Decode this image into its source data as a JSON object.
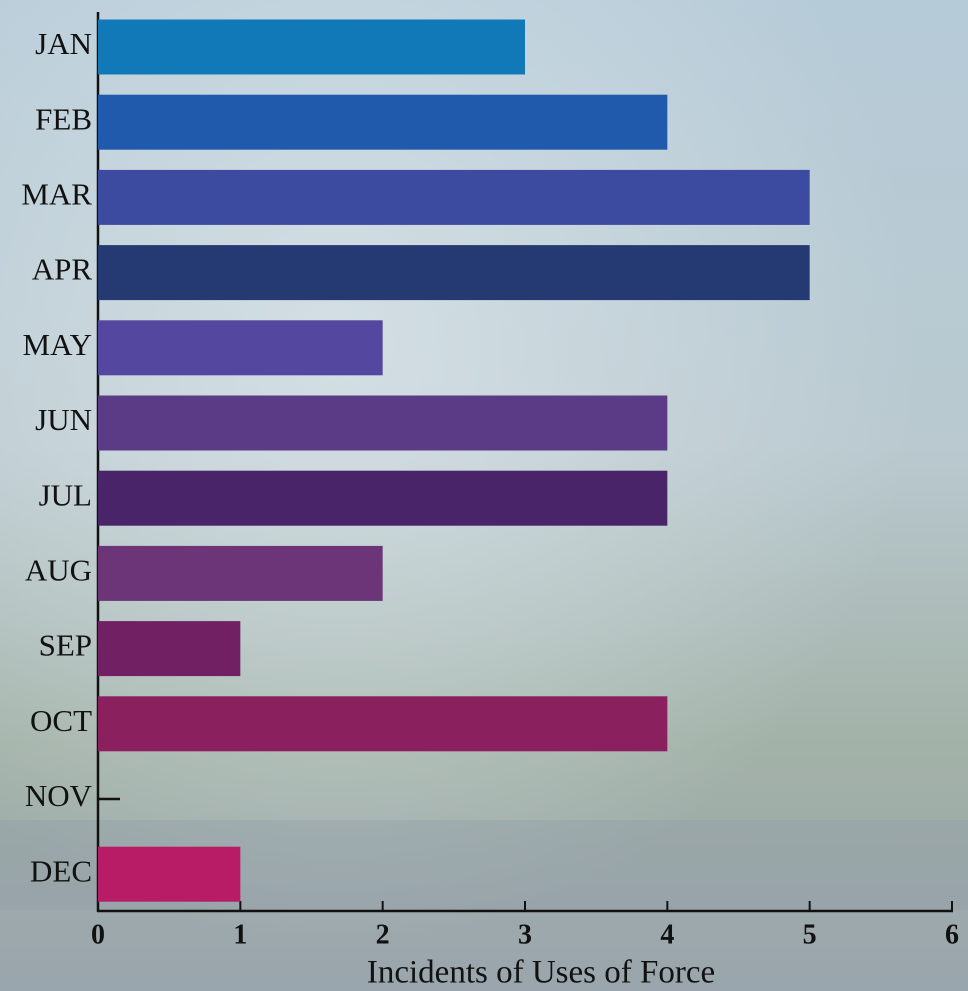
{
  "chart_data": {
    "type": "bar",
    "orientation": "horizontal",
    "x_label": "Incidents of Uses of Force",
    "categories": [
      "JAN",
      "FEB",
      "MAR",
      "APR",
      "MAY",
      "JUN",
      "JUL",
      "AUG",
      "SEP",
      "OCT",
      "NOV",
      "DEC"
    ],
    "values": [
      3,
      4,
      5,
      5,
      2,
      4,
      4,
      2,
      1,
      4,
      0,
      1
    ],
    "colors": [
      "#1279b8",
      "#1f5aac",
      "#3c4aa0",
      "#253a72",
      "#5447a0",
      "#5b3b85",
      "#4a2468",
      "#6b3578",
      "#722064",
      "#8a205e",
      "#8a205e",
      "#b81c66"
    ],
    "xlim": [
      0,
      6
    ],
    "xticks": [
      0,
      1,
      2,
      3,
      4,
      5,
      6
    ],
    "grid": false
  }
}
